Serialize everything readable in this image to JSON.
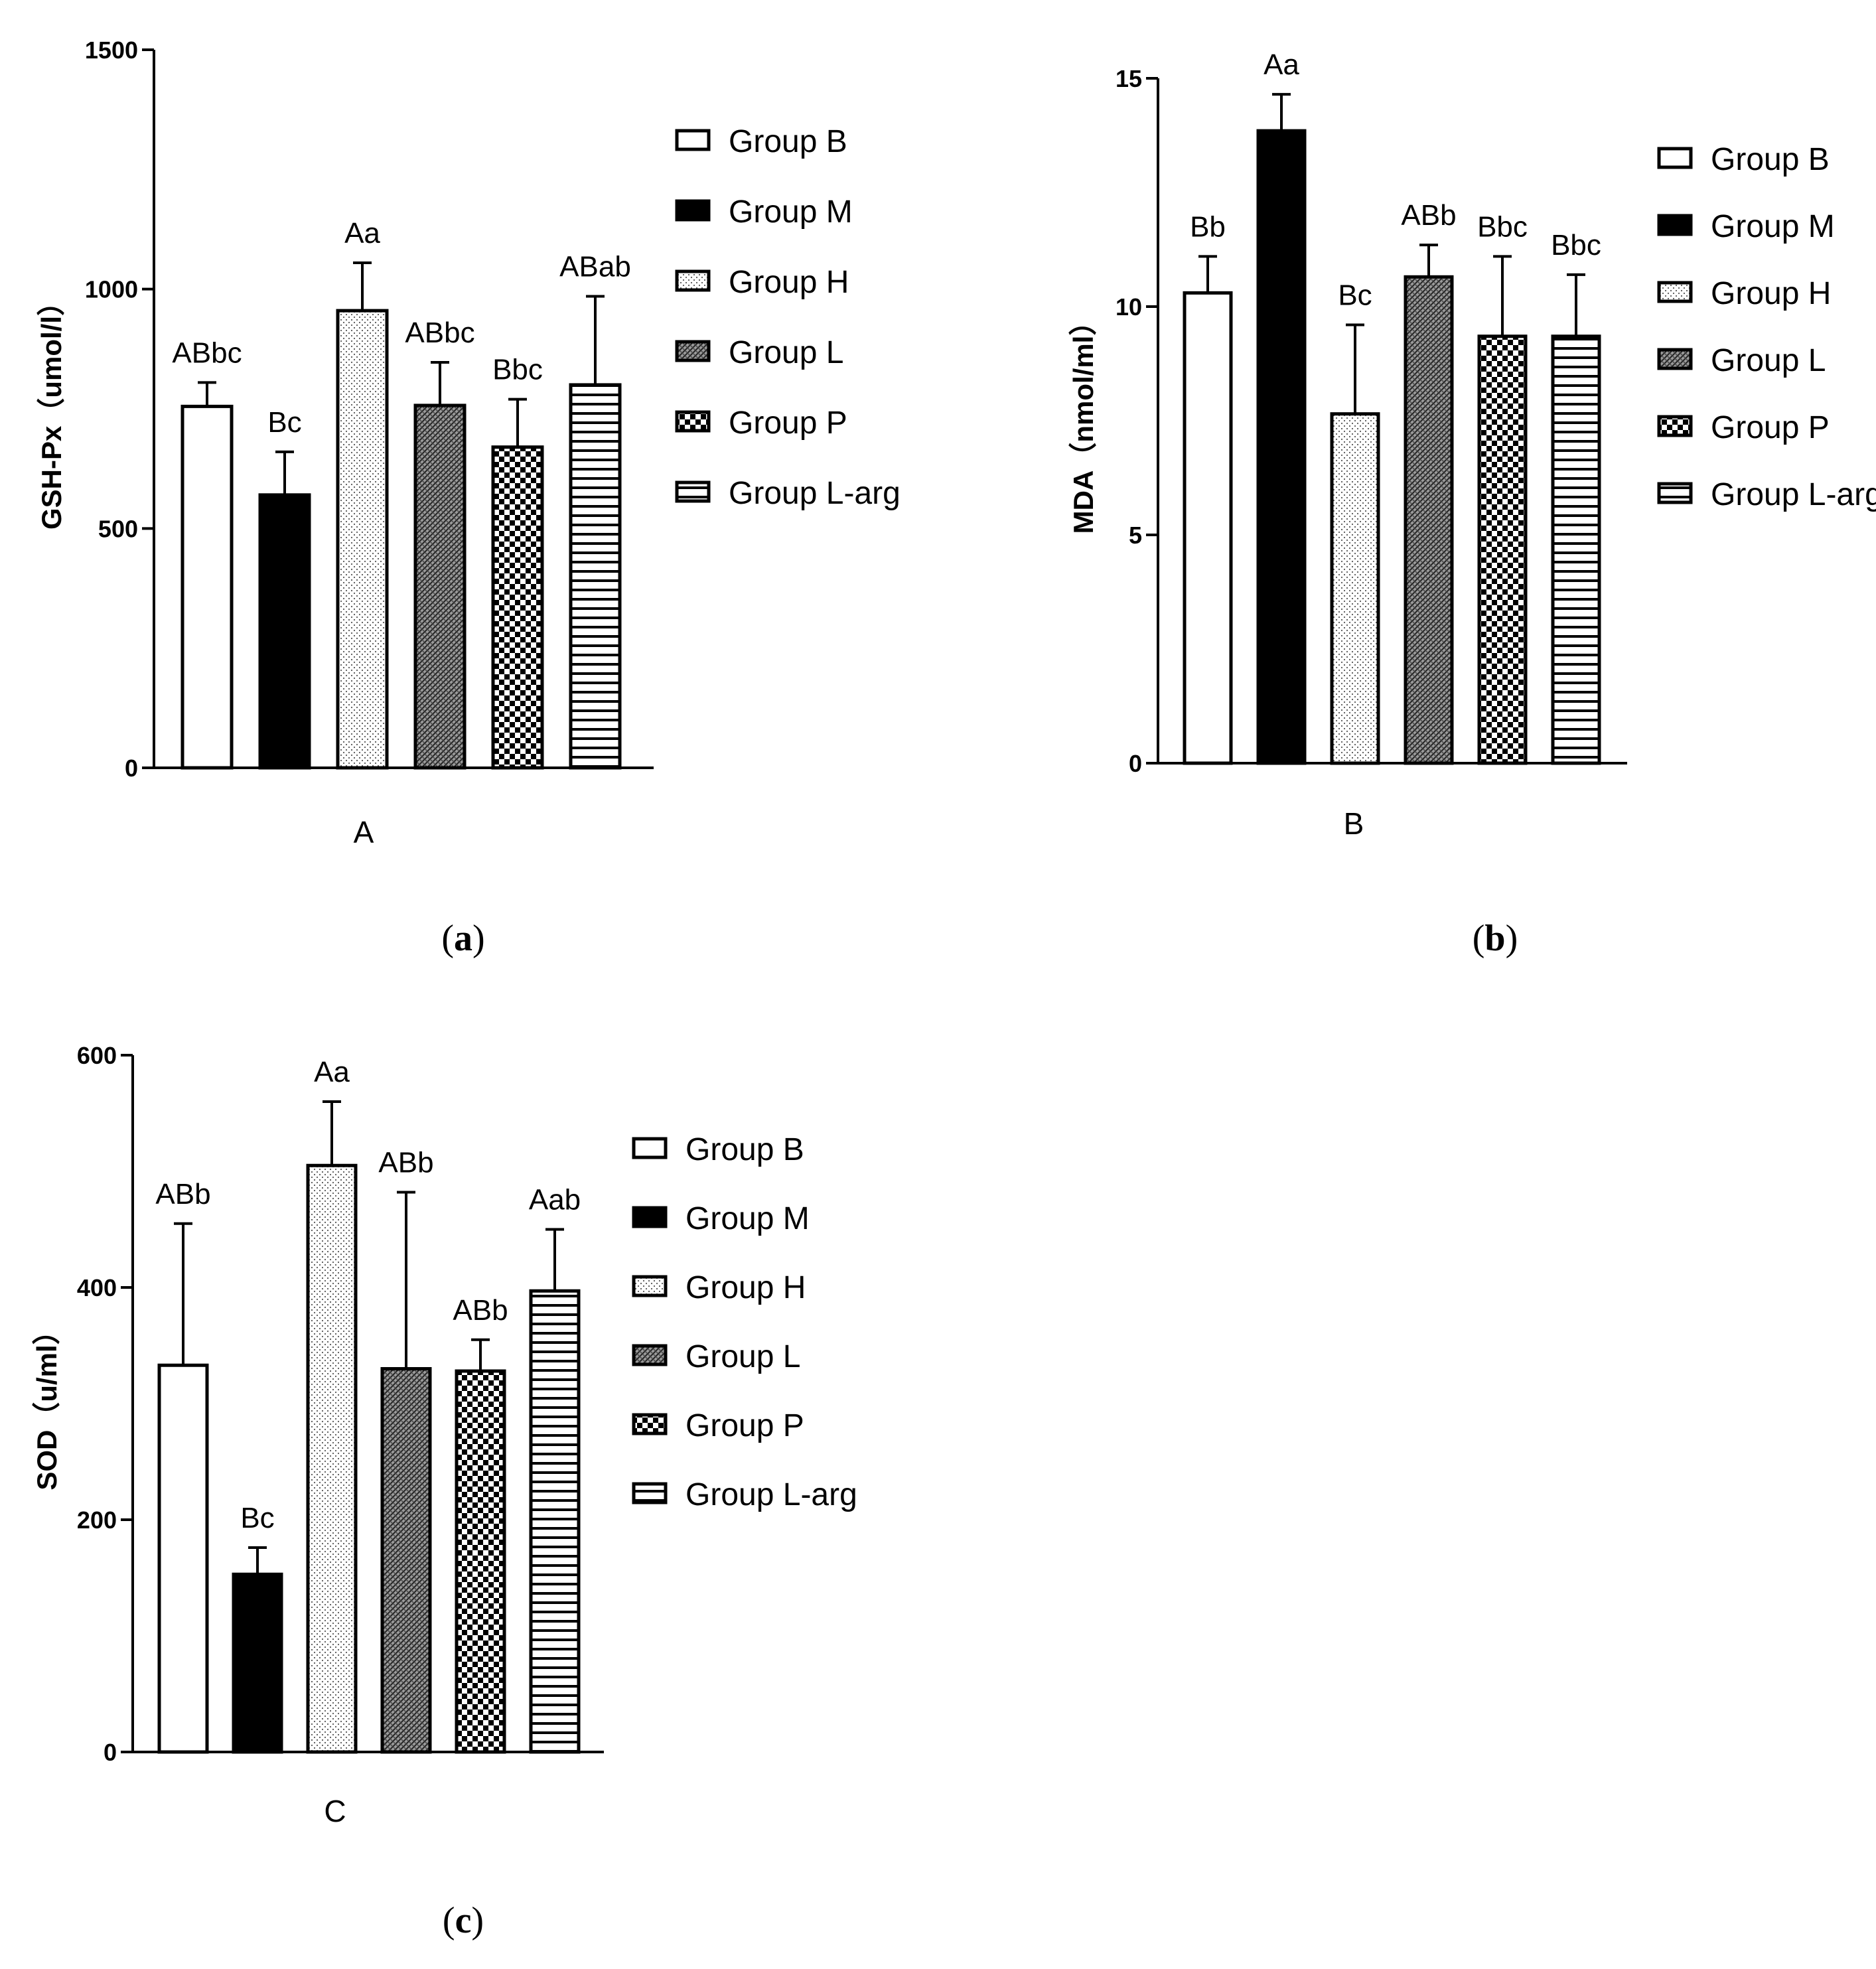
{
  "chart_data": [
    {
      "type": "bar",
      "panel_caption_paren_open": "(",
      "panel_caption_letter": "a",
      "panel_caption_paren_close": ")",
      "xlabel": "A",
      "ylabel": "GSH-Px（umol/l）",
      "ylim": [
        0,
        1500
      ],
      "yticks": [
        "0",
        "500",
        "1000",
        "1500"
      ],
      "yticks_values": [
        0,
        500,
        1000,
        1500
      ],
      "categories": [
        "Group B",
        "Group M",
        "Group H",
        "Group L",
        "Group P",
        "Group L-arg"
      ],
      "values": [
        755,
        570,
        955,
        757,
        670,
        800
      ],
      "errors": [
        50,
        90,
        100,
        90,
        100,
        185
      ],
      "significance": [
        "ABbc",
        "Bc",
        "Aa",
        "ABbc",
        "Bbc",
        "ABab"
      ],
      "legend_position": "right"
    },
    {
      "type": "bar",
      "panel_caption_paren_open": "(",
      "panel_caption_letter": "b",
      "panel_caption_paren_close": ")",
      "xlabel": "B",
      "ylabel": "MDA（nmol/ml）",
      "ylim": [
        0,
        15
      ],
      "yticks": [
        "0",
        "5",
        "10",
        "15"
      ],
      "yticks_values": [
        0,
        5,
        10,
        15
      ],
      "categories": [
        "Group B",
        "Group M",
        "Group H",
        "Group L",
        "Group P",
        "Group L-arg"
      ],
      "values": [
        10.3,
        13.85,
        7.65,
        10.65,
        9.35,
        9.35
      ],
      "errors": [
        0.8,
        0.8,
        1.95,
        0.7,
        1.75,
        1.35
      ],
      "significance": [
        "Bb",
        "Aa",
        "Bc",
        "ABb",
        "Bbc",
        "Bbc"
      ],
      "legend_position": "right"
    },
    {
      "type": "bar",
      "panel_caption_paren_open": "(",
      "panel_caption_letter": "c",
      "panel_caption_paren_close": ")",
      "xlabel": "C",
      "ylabel": "SOD（u/ml）",
      "ylim": [
        0,
        600
      ],
      "yticks": [
        "0",
        "200",
        "400",
        "600"
      ],
      "yticks_values": [
        0,
        200,
        400,
        600
      ],
      "categories": [
        "Group B",
        "Group M",
        "Group H",
        "Group L",
        "Group P",
        "Group L-arg"
      ],
      "values": [
        333,
        153,
        505,
        330,
        328,
        397
      ],
      "errors": [
        122,
        23,
        55,
        152,
        27,
        53
      ],
      "significance": [
        "ABb",
        "Bc",
        "Aa",
        "ABb",
        "ABb",
        "Aab"
      ],
      "legend_position": "right"
    }
  ],
  "pattern_names": [
    "open-fill",
    "solid-black",
    "fine-dots",
    "diagonal-hatch",
    "checkerboard",
    "horizontal-lines"
  ]
}
